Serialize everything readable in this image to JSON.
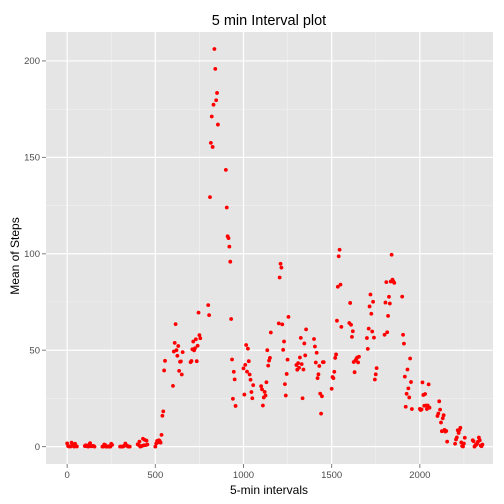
{
  "chart_data": {
    "type": "scatter",
    "title": "5 min Interval plot",
    "xlabel": "5-min intervals",
    "ylabel": "Mean of Steps",
    "xlim": [
      -120,
      2415
    ],
    "ylim": [
      -9,
      215
    ],
    "xticks": [
      0,
      500,
      1000,
      1500,
      2000
    ],
    "yticks": [
      0,
      50,
      100,
      150,
      200
    ],
    "grid": true,
    "legend": "none",
    "series": [
      {
        "color": "#ff0000",
        "points": [
          [
            0,
            1.7
          ],
          [
            5,
            0.3
          ],
          [
            10,
            0.1
          ],
          [
            15,
            0.2
          ],
          [
            20,
            0.1
          ],
          [
            25,
            2.1
          ],
          [
            30,
            0.5
          ],
          [
            35,
            0.9
          ],
          [
            40,
            0
          ],
          [
            45,
            1.5
          ],
          [
            50,
            0.3
          ],
          [
            55,
            0.1
          ],
          [
            100,
            0.3
          ],
          [
            105,
            0.7
          ],
          [
            110,
            0.2
          ],
          [
            115,
            0.3
          ],
          [
            120,
            0
          ],
          [
            125,
            1.1
          ],
          [
            130,
            1.8
          ],
          [
            135,
            0.2
          ],
          [
            140,
            0.2
          ],
          [
            145,
            0.4
          ],
          [
            150,
            0.3
          ],
          [
            155,
            0
          ],
          [
            200,
            0
          ],
          [
            205,
            0
          ],
          [
            210,
            1.1
          ],
          [
            215,
            0.9
          ],
          [
            220,
            0
          ],
          [
            225,
            0.1
          ],
          [
            230,
            0
          ],
          [
            235,
            0.2
          ],
          [
            240,
            0
          ],
          [
            245,
            0
          ],
          [
            250,
            1.5
          ],
          [
            255,
            0.9
          ],
          [
            300,
            0
          ],
          [
            305,
            0
          ],
          [
            310,
            0
          ],
          [
            315,
            0
          ],
          [
            320,
            0.2
          ],
          [
            325,
            0.6
          ],
          [
            330,
            1.6
          ],
          [
            335,
            0.6
          ],
          [
            340,
            0.5
          ],
          [
            345,
            0.1
          ],
          [
            350,
            0
          ],
          [
            355,
            0
          ],
          [
            400,
            1.2
          ],
          [
            405,
            0.9
          ],
          [
            410,
            2.6
          ],
          [
            415,
            0
          ],
          [
            420,
            0.3
          ],
          [
            425,
            0.4
          ],
          [
            430,
            4.1
          ],
          [
            435,
            0.7
          ],
          [
            440,
            3.5
          ],
          [
            445,
            0.8
          ],
          [
            450,
            3.1
          ],
          [
            455,
            1.1
          ],
          [
            500,
            0
          ],
          [
            505,
            1.6
          ],
          [
            510,
            3.0
          ],
          [
            515,
            2.2
          ],
          [
            520,
            3.3
          ],
          [
            525,
            3.0
          ],
          [
            530,
            2.1
          ],
          [
            535,
            6.1
          ],
          [
            540,
            16.0
          ],
          [
            545,
            18.3
          ],
          [
            550,
            39.5
          ],
          [
            555,
            44.5
          ],
          [
            600,
            31.5
          ],
          [
            605,
            49.3
          ],
          [
            610,
            53.8
          ],
          [
            615,
            63.5
          ],
          [
            620,
            50.0
          ],
          [
            625,
            47.1
          ],
          [
            630,
            52.2
          ],
          [
            635,
            39.3
          ],
          [
            640,
            44.0
          ],
          [
            645,
            44.2
          ],
          [
            650,
            37.4
          ],
          [
            655,
            49.0
          ],
          [
            700,
            43.8
          ],
          [
            705,
            44.4
          ],
          [
            710,
            50.5
          ],
          [
            715,
            54.5
          ],
          [
            720,
            49.9
          ],
          [
            725,
            51.0
          ],
          [
            730,
            55.7
          ],
          [
            735,
            44.3
          ],
          [
            740,
            52.3
          ],
          [
            745,
            69.5
          ],
          [
            750,
            57.8
          ],
          [
            755,
            56.2
          ],
          [
            800,
            73.4
          ],
          [
            805,
            68.2
          ],
          [
            810,
            129.4
          ],
          [
            815,
            157.5
          ],
          [
            820,
            171.2
          ],
          [
            825,
            155.4
          ],
          [
            830,
            177.3
          ],
          [
            835,
            206.2
          ],
          [
            840,
            195.9
          ],
          [
            845,
            179.6
          ],
          [
            850,
            183.4
          ],
          [
            855,
            167.0
          ],
          [
            900,
            143.5
          ],
          [
            905,
            124.0
          ],
          [
            910,
            109.1
          ],
          [
            915,
            108.1
          ],
          [
            920,
            103.7
          ],
          [
            925,
            95.9
          ],
          [
            930,
            66.2
          ],
          [
            935,
            45.2
          ],
          [
            940,
            24.8
          ],
          [
            945,
            38.8
          ],
          [
            950,
            34.9
          ],
          [
            955,
            21.1
          ],
          [
            1000,
            40.6
          ],
          [
            1005,
            27.0
          ],
          [
            1010,
            42.4
          ],
          [
            1015,
            52.7
          ],
          [
            1020,
            38.9
          ],
          [
            1025,
            50.8
          ],
          [
            1030,
            44.3
          ],
          [
            1035,
            37.4
          ],
          [
            1040,
            34.7
          ],
          [
            1045,
            28.3
          ],
          [
            1050,
            25.1
          ],
          [
            1055,
            31.9
          ],
          [
            1100,
            31.4
          ],
          [
            1105,
            29.7
          ],
          [
            1110,
            21.3
          ],
          [
            1115,
            25.5
          ],
          [
            1120,
            28.4
          ],
          [
            1125,
            26.5
          ],
          [
            1130,
            33.4
          ],
          [
            1135,
            50.0
          ],
          [
            1140,
            42.0
          ],
          [
            1145,
            44.6
          ],
          [
            1150,
            46.0
          ],
          [
            1155,
            59.2
          ],
          [
            1200,
            63.9
          ],
          [
            1205,
            87.7
          ],
          [
            1210,
            94.8
          ],
          [
            1215,
            92.8
          ],
          [
            1220,
            63.4
          ],
          [
            1225,
            50.2
          ],
          [
            1230,
            54.5
          ],
          [
            1235,
            32.4
          ],
          [
            1240,
            26.5
          ],
          [
            1245,
            37.7
          ],
          [
            1250,
            45.1
          ],
          [
            1255,
            67.3
          ],
          [
            1300,
            42.3
          ],
          [
            1305,
            39.9
          ],
          [
            1310,
            43.3
          ],
          [
            1315,
            40.9
          ],
          [
            1320,
            46.2
          ],
          [
            1325,
            56.4
          ],
          [
            1330,
            42.8
          ],
          [
            1335,
            25.1
          ],
          [
            1340,
            40.0
          ],
          [
            1345,
            53.5
          ],
          [
            1350,
            47.3
          ],
          [
            1355,
            60.8
          ],
          [
            1400,
            55.8
          ],
          [
            1405,
            51.9
          ],
          [
            1410,
            43.6
          ],
          [
            1415,
            48.7
          ],
          [
            1420,
            35.5
          ],
          [
            1425,
            37.5
          ],
          [
            1430,
            41.8
          ],
          [
            1435,
            27.5
          ],
          [
            1440,
            17.1
          ],
          [
            1445,
            26.1
          ],
          [
            1450,
            43.8
          ],
          [
            1455,
            43.8
          ],
          [
            1500,
            30.0
          ],
          [
            1505,
            36.1
          ],
          [
            1510,
            35.5
          ],
          [
            1515,
            38.8
          ],
          [
            1520,
            46.0
          ],
          [
            1525,
            47.8
          ],
          [
            1530,
            65.3
          ],
          [
            1535,
            82.9
          ],
          [
            1540,
            98.7
          ],
          [
            1545,
            102.1
          ],
          [
            1550,
            84.0
          ],
          [
            1555,
            62.1
          ],
          [
            1600,
            64.1
          ],
          [
            1605,
            74.5
          ],
          [
            1610,
            63.2
          ],
          [
            1615,
            56.9
          ],
          [
            1620,
            59.8
          ],
          [
            1625,
            43.9
          ],
          [
            1630,
            38.6
          ],
          [
            1635,
            44.7
          ],
          [
            1640,
            45.5
          ],
          [
            1645,
            46.2
          ],
          [
            1650,
            43.7
          ],
          [
            1655,
            46.6
          ],
          [
            1700,
            56.3
          ],
          [
            1705,
            50.7
          ],
          [
            1710,
            61.2
          ],
          [
            1715,
            72.7
          ],
          [
            1720,
            78.9
          ],
          [
            1725,
            68.9
          ],
          [
            1730,
            59.7
          ],
          [
            1735,
            75.1
          ],
          [
            1740,
            56.5
          ],
          [
            1745,
            34.8
          ],
          [
            1750,
            37.5
          ],
          [
            1755,
            40.7
          ],
          [
            1800,
            58.0
          ],
          [
            1805,
            74.7
          ],
          [
            1810,
            85.3
          ],
          [
            1815,
            59.3
          ],
          [
            1820,
            67.8
          ],
          [
            1825,
            77.7
          ],
          [
            1830,
            74.2
          ],
          [
            1835,
            85.6
          ],
          [
            1840,
            99.5
          ],
          [
            1845,
            86.6
          ],
          [
            1850,
            85.6
          ],
          [
            1855,
            84.9
          ],
          [
            1900,
            77.8
          ],
          [
            1905,
            58.0
          ],
          [
            1910,
            53.4
          ],
          [
            1915,
            36.3
          ],
          [
            1920,
            20.7
          ],
          [
            1925,
            27.4
          ],
          [
            1930,
            40.0
          ],
          [
            1935,
            30.2
          ],
          [
            1940,
            25.5
          ],
          [
            1945,
            45.7
          ],
          [
            1950,
            33.5
          ],
          [
            1955,
            19.5
          ],
          [
            2000,
            19.6
          ],
          [
            2005,
            19.0
          ],
          [
            2010,
            19.3
          ],
          [
            2015,
            33.3
          ],
          [
            2020,
            26.8
          ],
          [
            2025,
            21.2
          ],
          [
            2030,
            27.3
          ],
          [
            2035,
            21.3
          ],
          [
            2040,
            19.5
          ],
          [
            2045,
            21.3
          ],
          [
            2050,
            32.3
          ],
          [
            2055,
            20.2
          ],
          [
            2100,
            15.9
          ],
          [
            2105,
            17.2
          ],
          [
            2110,
            23.5
          ],
          [
            2115,
            19.2
          ],
          [
            2120,
            12.5
          ],
          [
            2125,
            8.0
          ],
          [
            2130,
            14.7
          ],
          [
            2135,
            16.3
          ],
          [
            2140,
            8.7
          ],
          [
            2145,
            7.8
          ],
          [
            2150,
            8.1
          ],
          [
            2155,
            2.6
          ],
          [
            2200,
            1.5
          ],
          [
            2205,
            3.7
          ],
          [
            2210,
            4.8
          ],
          [
            2215,
            8.5
          ],
          [
            2220,
            7.1
          ],
          [
            2225,
            8.7
          ],
          [
            2230,
            9.8
          ],
          [
            2235,
            2.2
          ],
          [
            2240,
            0.3
          ],
          [
            2245,
            0.1
          ],
          [
            2250,
            1.6
          ],
          [
            2255,
            4.6
          ],
          [
            2300,
            3.3
          ],
          [
            2305,
            2.8
          ],
          [
            2310,
            0
          ],
          [
            2315,
            0.8
          ],
          [
            2320,
            1.0
          ],
          [
            2325,
            1.6
          ],
          [
            2330,
            2.6
          ],
          [
            2335,
            4.7
          ],
          [
            2340,
            3.3
          ],
          [
            2345,
            0.6
          ],
          [
            2350,
            0.2
          ],
          [
            2355,
            1.1
          ]
        ]
      }
    ]
  }
}
